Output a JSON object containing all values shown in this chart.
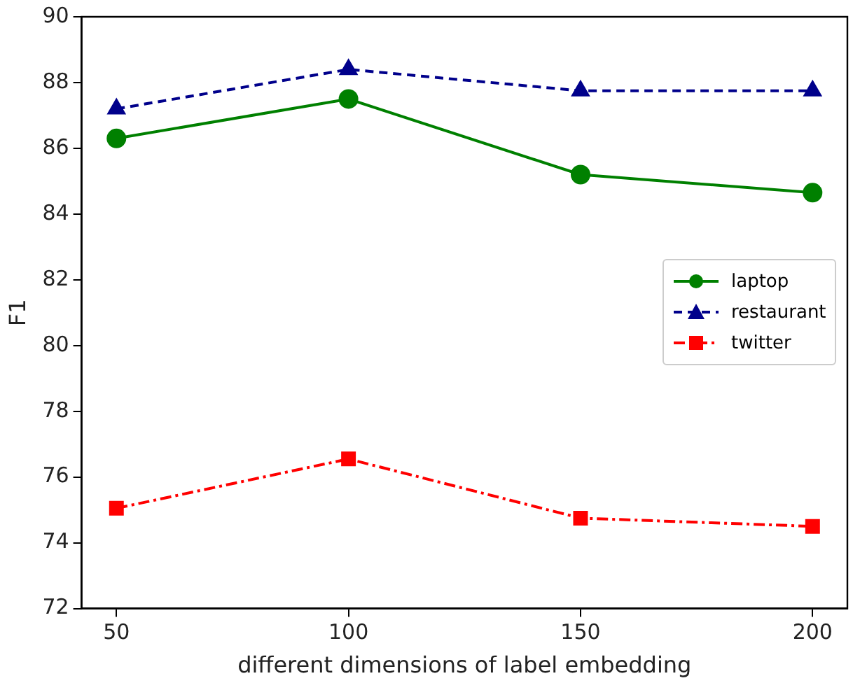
{
  "chart_data": {
    "type": "line",
    "xlabel": "different dimensions of label embedding",
    "ylabel": "F1",
    "x": [
      50,
      100,
      150,
      200
    ],
    "series": [
      {
        "name": "laptop",
        "color": "#008000",
        "marker": "circle",
        "line_style": "solid",
        "values": [
          86.3,
          87.5,
          85.2,
          84.65
        ]
      },
      {
        "name": "restaurant",
        "color": "#00008b",
        "marker": "triangle",
        "line_style": "dashed",
        "values": [
          87.2,
          88.4,
          87.75,
          87.75
        ]
      },
      {
        "name": "twitter",
        "color": "#ff0000",
        "marker": "square",
        "line_style": "dashdot",
        "values": [
          75.05,
          76.55,
          74.75,
          74.5
        ]
      }
    ],
    "xlim": [
      42.5,
      207.5
    ],
    "xticks": [
      50,
      100,
      150,
      200
    ],
    "ylim": [
      72,
      90
    ],
    "yticks": [
      72,
      74,
      76,
      78,
      80,
      82,
      84,
      86,
      88,
      90
    ],
    "grid": false,
    "legend": "right"
  }
}
